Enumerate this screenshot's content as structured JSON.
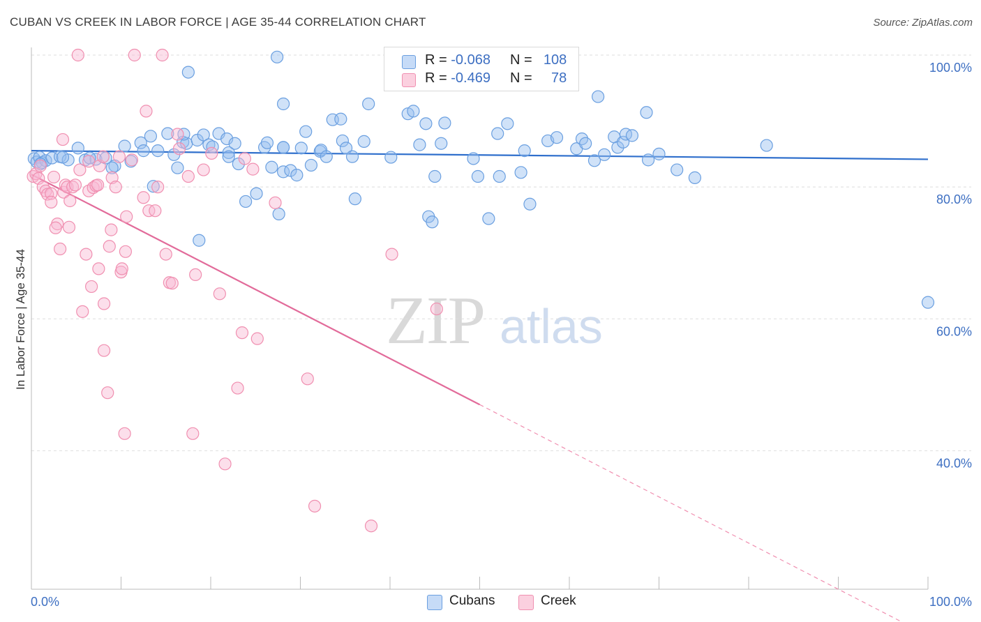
{
  "header": {
    "title": "CUBAN VS CREEK IN LABOR FORCE | AGE 35-44 CORRELATION CHART",
    "source": "Source: ZipAtlas.com"
  },
  "watermark": {
    "zip": "ZIP",
    "atlas": "atlas"
  },
  "legend": {
    "cubans": {
      "r_label": "R =",
      "r_value": "-0.068",
      "n_label": "N =",
      "n_value": "108",
      "color": "#6a9fe0"
    },
    "creek": {
      "r_label": "R =",
      "r_value": "-0.469",
      "n_label": "N =",
      "n_value": "78",
      "color": "#f08fb0"
    }
  },
  "bottom_legend": {
    "cubans": "Cubans",
    "creek": "Creek"
  },
  "chart_data": {
    "type": "scatter",
    "title": "CUBAN VS CREEK IN LABOR FORCE | AGE 35-44 CORRELATION CHART",
    "xlabel": "",
    "ylabel": "In Labor Force | Age 35-44",
    "xlim": [
      0,
      100
    ],
    "ylim": [
      19,
      100
    ],
    "x_tick_labels": [
      "0.0%",
      "100.0%"
    ],
    "y_ticks": [
      40,
      60,
      80,
      100
    ],
    "y_tick_labels": [
      "40.0%",
      "60.0%",
      "80.0%",
      "100.0%"
    ],
    "grid": true,
    "legend_position": "top-center",
    "series": [
      {
        "name": "Cubans",
        "color": "#6a9fe0",
        "trend": {
          "x": [
            0,
            100
          ],
          "y": [
            85.5,
            84.2
          ]
        },
        "points": [
          [
            0.3,
            84.3
          ],
          [
            0.6,
            83.8
          ],
          [
            0.9,
            84.5
          ],
          [
            1.2,
            83.7
          ],
          [
            1.6,
            84.0
          ],
          [
            2.3,
            84.4
          ],
          [
            3.2,
            84.6
          ],
          [
            4.1,
            84.1
          ],
          [
            5.2,
            85.9
          ],
          [
            6.0,
            84.1
          ],
          [
            7.2,
            84.2
          ],
          [
            8.3,
            84.4
          ],
          [
            9.3,
            83.2
          ],
          [
            10.4,
            86.2
          ],
          [
            9.0,
            82.9
          ],
          [
            11.1,
            83.9
          ],
          [
            12.2,
            86.7
          ],
          [
            12.5,
            85.5
          ],
          [
            13.3,
            87.7
          ],
          [
            13.6,
            80.1
          ],
          [
            14.1,
            85.5
          ],
          [
            15.2,
            88.1
          ],
          [
            15.9,
            84.9
          ],
          [
            16.3,
            82.9
          ],
          [
            16.9,
            86.8
          ],
          [
            17.3,
            86.6
          ],
          [
            17.5,
            97.4
          ],
          [
            18.5,
            87.1
          ],
          [
            18.7,
            71.9
          ],
          [
            19.2,
            87.9
          ],
          [
            19.8,
            86.4
          ],
          [
            20.2,
            86.1
          ],
          [
            20.9,
            88.1
          ],
          [
            21.8,
            87.3
          ],
          [
            22.0,
            85.2
          ],
          [
            22.7,
            86.6
          ],
          [
            23.1,
            83.5
          ],
          [
            22.0,
            84.6
          ],
          [
            23.9,
            77.8
          ],
          [
            25.1,
            79.0
          ],
          [
            26.0,
            86.0
          ],
          [
            26.3,
            86.7
          ],
          [
            26.8,
            83.0
          ],
          [
            27.6,
            75.9
          ],
          [
            28.1,
            86.0
          ],
          [
            28.1,
            86.0
          ],
          [
            27.4,
            99.7
          ],
          [
            28.1,
            92.6
          ],
          [
            28.1,
            82.3
          ],
          [
            28.9,
            82.5
          ],
          [
            29.6,
            81.8
          ],
          [
            30.1,
            85.9
          ],
          [
            30.6,
            88.4
          ],
          [
            31.2,
            83.3
          ],
          [
            32.2,
            85.4
          ],
          [
            32.3,
            85.6
          ],
          [
            32.9,
            84.6
          ],
          [
            33.6,
            90.2
          ],
          [
            34.5,
            90.3
          ],
          [
            34.7,
            87.0
          ],
          [
            35.1,
            85.9
          ],
          [
            35.8,
            84.6
          ],
          [
            36.1,
            78.2
          ],
          [
            37.1,
            86.9
          ],
          [
            37.6,
            92.6
          ],
          [
            40.1,
            84.5
          ],
          [
            42.0,
            91.1
          ],
          [
            42.6,
            91.5
          ],
          [
            43.3,
            86.4
          ],
          [
            44.0,
            89.6
          ],
          [
            44.3,
            75.5
          ],
          [
            44.7,
            74.7
          ],
          [
            45.0,
            81.6
          ],
          [
            45.7,
            86.6
          ],
          [
            46.1,
            89.7
          ],
          [
            49.3,
            84.3
          ],
          [
            49.8,
            81.6
          ],
          [
            51.0,
            75.2
          ],
          [
            52.0,
            88.1
          ],
          [
            52.2,
            81.6
          ],
          [
            53.1,
            89.6
          ],
          [
            54.6,
            82.2
          ],
          [
            55.0,
            85.5
          ],
          [
            55.6,
            77.4
          ],
          [
            57.6,
            87.0
          ],
          [
            58.6,
            87.5
          ],
          [
            60.8,
            85.8
          ],
          [
            61.4,
            87.3
          ],
          [
            61.8,
            86.6
          ],
          [
            62.8,
            84.0
          ],
          [
            63.2,
            93.7
          ],
          [
            63.9,
            84.9
          ],
          [
            65.0,
            87.6
          ],
          [
            65.4,
            86.0
          ],
          [
            66.0,
            86.8
          ],
          [
            66.3,
            88.0
          ],
          [
            67.0,
            87.8
          ],
          [
            68.6,
            91.3
          ],
          [
            68.8,
            84.1
          ],
          [
            70.0,
            85.0
          ],
          [
            72.0,
            82.6
          ],
          [
            74.0,
            81.4
          ],
          [
            82.0,
            86.3
          ],
          [
            100.0,
            62.5
          ],
          [
            1.0,
            83.5
          ],
          [
            3.5,
            84.5
          ],
          [
            6.5,
            84.4
          ],
          [
            17.0,
            88.0
          ]
        ]
      },
      {
        "name": "Creek",
        "color": "#f08fb0",
        "trend": {
          "x": [
            0,
            50
          ],
          "y": [
            81.9,
            47.0
          ]
        },
        "trend_dashed": {
          "x": [
            50,
            100
          ],
          "y": [
            47.0,
            12.0
          ]
        },
        "points": [
          [
            0.2,
            81.6
          ],
          [
            0.5,
            82.0
          ],
          [
            0.8,
            81.3
          ],
          [
            1.0,
            83.2
          ],
          [
            1.3,
            80.0
          ],
          [
            1.6,
            79.4
          ],
          [
            1.8,
            78.9
          ],
          [
            2.2,
            79.0
          ],
          [
            2.5,
            81.5
          ],
          [
            2.2,
            77.7
          ],
          [
            2.9,
            74.4
          ],
          [
            2.7,
            73.8
          ],
          [
            3.2,
            70.6
          ],
          [
            3.5,
            87.2
          ],
          [
            3.6,
            79.2
          ],
          [
            3.8,
            80.3
          ],
          [
            4.0,
            80.0
          ],
          [
            4.3,
            77.9
          ],
          [
            4.2,
            73.9
          ],
          [
            4.6,
            80.0
          ],
          [
            4.9,
            80.3
          ],
          [
            5.2,
            100.0
          ],
          [
            5.4,
            82.6
          ],
          [
            5.7,
            61.1
          ],
          [
            6.1,
            69.8
          ],
          [
            6.4,
            83.9
          ],
          [
            6.4,
            79.4
          ],
          [
            6.7,
            64.9
          ],
          [
            6.9,
            79.9
          ],
          [
            7.2,
            80.2
          ],
          [
            7.4,
            80.3
          ],
          [
            7.5,
            67.6
          ],
          [
            7.6,
            83.2
          ],
          [
            8.0,
            84.6
          ],
          [
            8.1,
            55.2
          ],
          [
            8.1,
            62.3
          ],
          [
            8.5,
            48.8
          ],
          [
            8.7,
            71.0
          ],
          [
            8.9,
            73.5
          ],
          [
            9.0,
            81.4
          ],
          [
            9.4,
            80.0
          ],
          [
            9.8,
            84.6
          ],
          [
            10.0,
            67.1
          ],
          [
            10.1,
            67.6
          ],
          [
            10.4,
            42.6
          ],
          [
            10.5,
            70.2
          ],
          [
            10.6,
            75.5
          ],
          [
            11.2,
            84.1
          ],
          [
            11.5,
            100.0
          ],
          [
            12.5,
            78.4
          ],
          [
            12.8,
            91.5
          ],
          [
            13.1,
            76.4
          ],
          [
            13.8,
            76.4
          ],
          [
            14.1,
            80.0
          ],
          [
            14.6,
            100.0
          ],
          [
            15.0,
            69.8
          ],
          [
            15.4,
            65.5
          ],
          [
            15.7,
            65.4
          ],
          [
            16.3,
            88.0
          ],
          [
            16.5,
            85.8
          ],
          [
            17.5,
            81.6
          ],
          [
            18.0,
            42.6
          ],
          [
            18.3,
            66.7
          ],
          [
            19.2,
            82.6
          ],
          [
            20.1,
            85.1
          ],
          [
            21.0,
            63.8
          ],
          [
            21.6,
            38.0
          ],
          [
            23.0,
            49.5
          ],
          [
            23.8,
            84.3
          ],
          [
            23.5,
            57.9
          ],
          [
            24.7,
            82.7
          ],
          [
            25.2,
            57.0
          ],
          [
            27.2,
            77.6
          ],
          [
            30.8,
            50.9
          ],
          [
            31.6,
            31.6
          ],
          [
            37.9,
            28.6
          ],
          [
            40.2,
            69.8
          ],
          [
            45.2,
            61.5
          ]
        ]
      }
    ]
  }
}
